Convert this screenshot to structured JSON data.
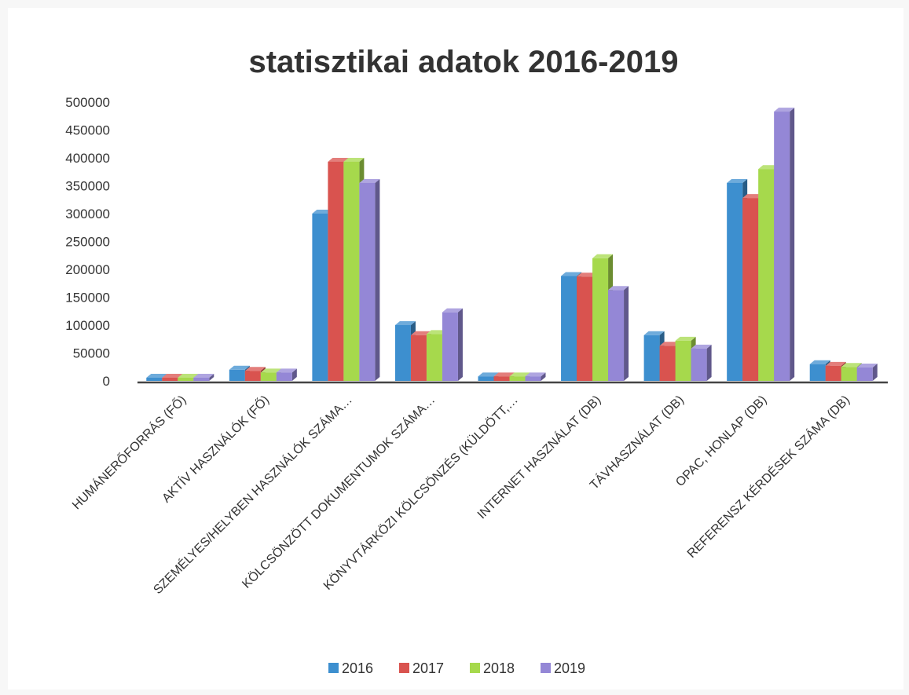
{
  "chart_data": {
    "type": "bar",
    "title": "statisztikai adatok 2016-2019",
    "xlabel": "",
    "ylabel": "",
    "ylim": [
      0,
      500000
    ],
    "yticks": [
      0,
      50000,
      100000,
      150000,
      200000,
      250000,
      300000,
      350000,
      400000,
      450000,
      500000
    ],
    "categories": [
      "HUMÁNERŐFORRÁS (FŐ)",
      "AKTÍV HASZNÁLÓK (FŐ)",
      "SZEMÉLYES/HELYBEN HASZNÁLÓK SZÁMA…",
      "KÖLCSÖNZÖTT DOKUMENTUMOK SZÁMA…",
      "KÖNYVTÁRKÖZI KÖLCSÖNZÉS (KÜLDÖTT,…",
      "INTERNET HASZNÁLAT (DB)",
      "TÁVHASZNÁLAT (DB)",
      "OPAC, HONLAP (DB)",
      "REFERENSZ KÉRDÉSEK SZÁMA (DB)"
    ],
    "series": [
      {
        "name": "2016",
        "color": "#3d8fcf",
        "values": [
          5,
          20000,
          300000,
          100000,
          8000,
          188000,
          82000,
          355000,
          30000
        ]
      },
      {
        "name": "2017",
        "color": "#d9534f",
        "values": [
          5,
          18000,
          393000,
          82000,
          8000,
          187000,
          63000,
          328000,
          27000
        ]
      },
      {
        "name": "2018",
        "color": "#a6d94c",
        "values": [
          5,
          15000,
          393000,
          84000,
          8000,
          220000,
          72000,
          380000,
          25000
        ]
      },
      {
        "name": "2019",
        "color": "#9487d6",
        "values": [
          5,
          15000,
          355000,
          123000,
          8000,
          163000,
          58000,
          483000,
          24000
        ]
      }
    ],
    "legend": "bottom",
    "grid": false
  }
}
